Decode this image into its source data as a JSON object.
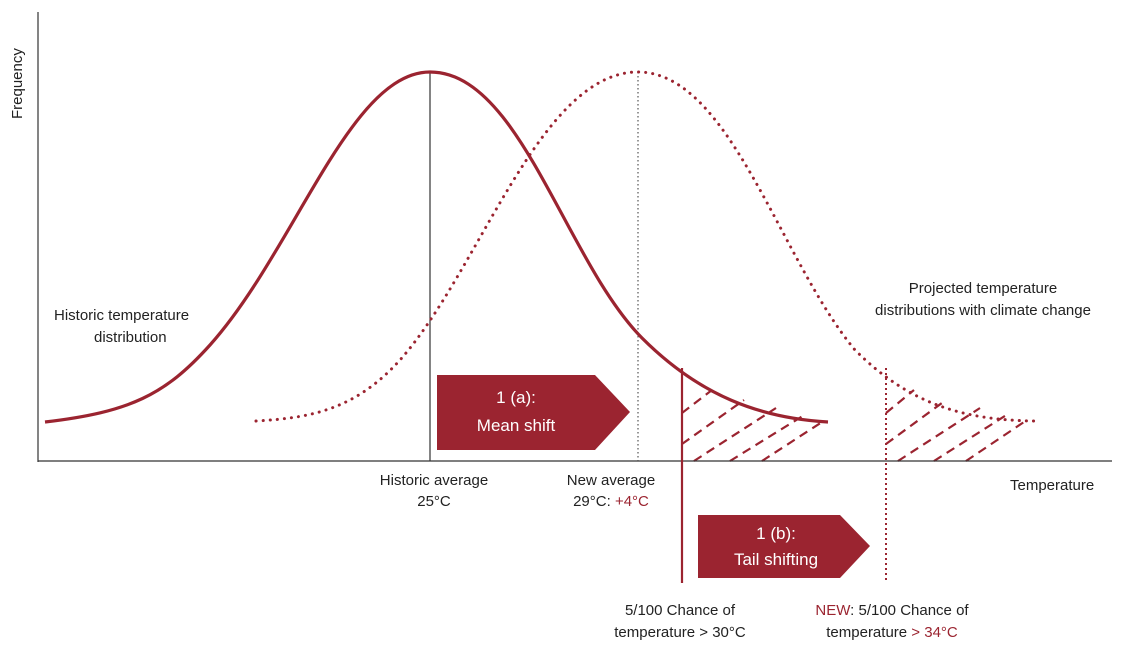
{
  "colors": {
    "accent": "#9b2430",
    "text": "#222222",
    "axis": "#333333"
  },
  "axes": {
    "y_label": "Frequency",
    "x_label": "Temperature"
  },
  "curves": {
    "historic_label": [
      "Historic temperature",
      "distribution"
    ],
    "projected_label": [
      "Projected temperature",
      "distributions with climate change"
    ]
  },
  "arrows": {
    "mean_shift": [
      "1 (a):",
      "Mean shift"
    ],
    "tail_shifting": [
      "1 (b):",
      "Tail shifting"
    ]
  },
  "markers": {
    "historic_average": {
      "line1": "Historic average",
      "line2": "25°C"
    },
    "new_average": {
      "line1": "New average",
      "line2_prefix": "29°C: ",
      "line2_highlight": "+4°C"
    }
  },
  "thresholds": {
    "old": {
      "line1": "5/100 Chance of",
      "line2": "temperature > 30°C"
    },
    "new": {
      "line1_highlight": "NEW",
      "line1_rest": ": 5/100 Chance of",
      "line2_prefix": "temperature ",
      "line2_highlight": "> 34°C"
    }
  }
}
